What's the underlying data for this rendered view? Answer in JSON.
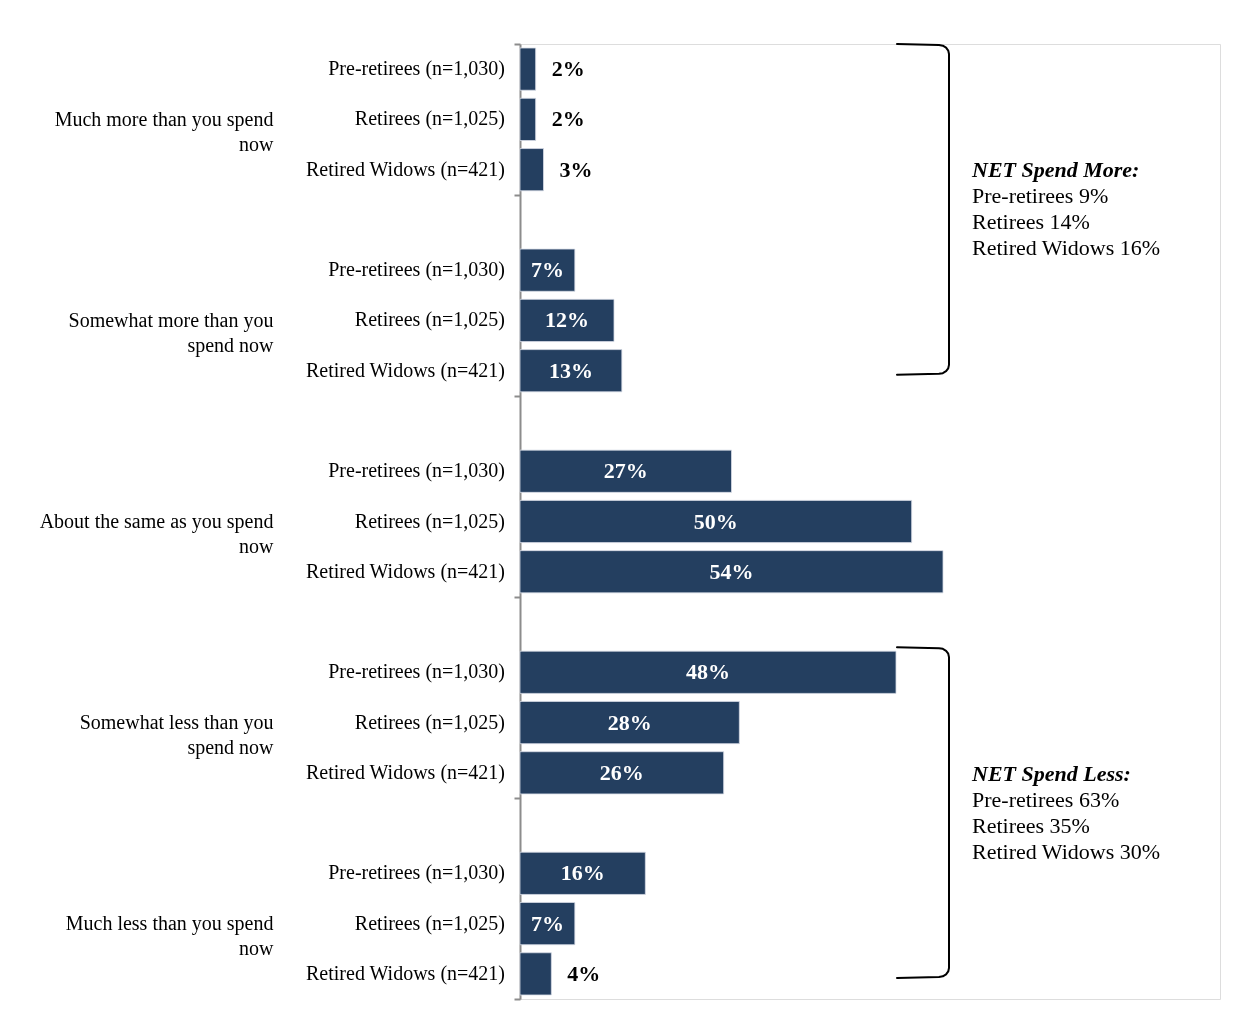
{
  "chart_data": {
    "type": "bar",
    "orientation": "horizontal",
    "categories": [
      "Much more than you spend now",
      "Somewhat more than you spend now",
      "About the same as you spend now",
      "Somewhat less than you spend now",
      "Much less than you spend now"
    ],
    "series": [
      {
        "name": "Pre-retirees (n=1,030)",
        "color": "#243f60",
        "values": [
          2,
          7,
          27,
          48,
          16
        ],
        "value_labels": [
          "2%",
          "7%",
          "27%",
          "48%",
          "16%"
        ]
      },
      {
        "name": "Retirees (n=1,025)",
        "color": "#243f60",
        "values": [
          2,
          12,
          50,
          28,
          7
        ],
        "value_labels": [
          "2%",
          "12%",
          "50%",
          "28%",
          "7%"
        ]
      },
      {
        "name": "Retired Widows (n=421)",
        "color": "#243f60",
        "values": [
          3,
          13,
          54,
          26,
          4
        ],
        "value_labels": [
          "3%",
          "13%",
          "54%",
          "26%",
          "4%"
        ]
      }
    ],
    "annotations": [
      "NET Spend More:\nPre-retirees 9%\nRetirees 14%\nRetired Widows 16%",
      "NET Spend Less:\nPre-retirees 63%\nRetirees 35%\nRetired Widows 30%"
    ]
  }
}
